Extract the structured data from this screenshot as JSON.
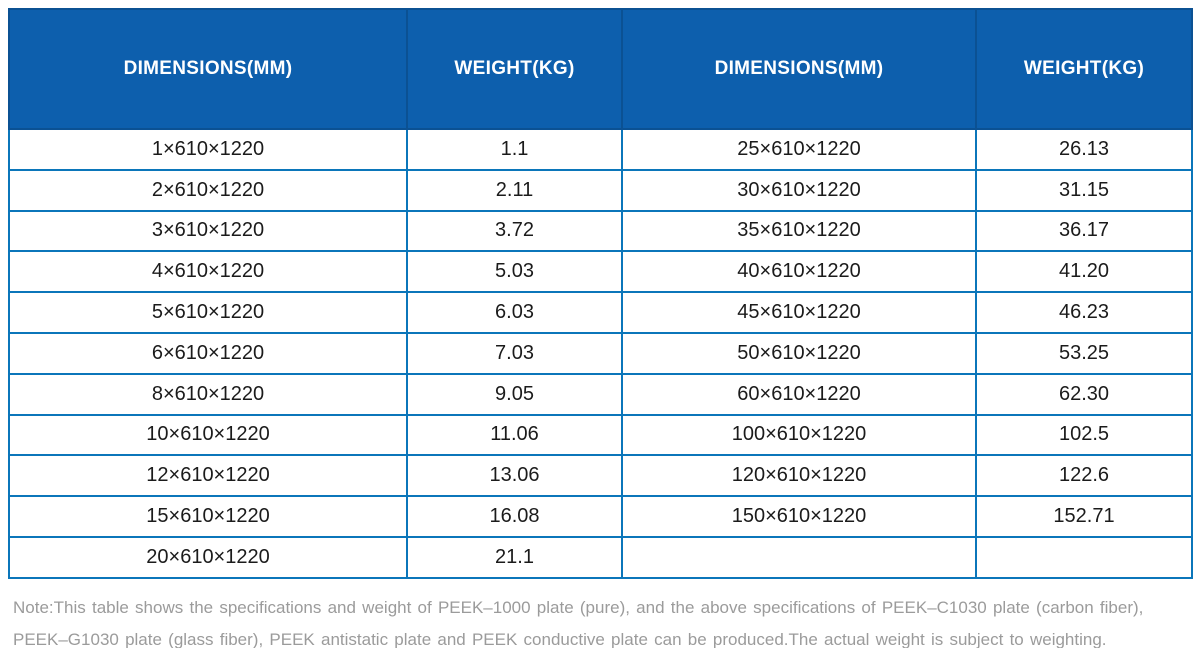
{
  "colors": {
    "header_bg": "#0d5fad",
    "header_border": "#0b5193",
    "header_text": "#ffffff",
    "grid_border": "#0b76ba",
    "cell_text": "#1b1b1b",
    "note_text": "#9b9b9b"
  },
  "table": {
    "columns": [
      {
        "label": "DIMENSIONS(MM)"
      },
      {
        "label": "WEIGHT(KG)"
      },
      {
        "label": "DIMENSIONS(MM)"
      },
      {
        "label": "WEIGHT(KG)"
      }
    ],
    "rows": [
      [
        "1×610×1220",
        "1.1",
        "25×610×1220",
        "26.13"
      ],
      [
        "2×610×1220",
        "2.11",
        "30×610×1220",
        "31.15"
      ],
      [
        "3×610×1220",
        "3.72",
        "35×610×1220",
        "36.17"
      ],
      [
        "4×610×1220",
        "5.03",
        "40×610×1220",
        "41.20"
      ],
      [
        "5×610×1220",
        "6.03",
        "45×610×1220",
        "46.23"
      ],
      [
        "6×610×1220",
        "7.03",
        "50×610×1220",
        "53.25"
      ],
      [
        "8×610×1220",
        "9.05",
        "60×610×1220",
        "62.30"
      ],
      [
        "10×610×1220",
        "11.06",
        "100×610×1220",
        "102.5"
      ],
      [
        "12×610×1220",
        "13.06",
        "120×610×1220",
        "122.6"
      ],
      [
        "15×610×1220",
        "16.08",
        "150×610×1220",
        "152.71"
      ],
      [
        "20×610×1220",
        "21.1",
        "",
        ""
      ]
    ]
  },
  "note": {
    "line1": "Note:This table shows the specifications and weight of PEEK–1000 plate (pure), and the above specifications of PEEK–C1030 plate (carbon fiber),",
    "line2": "PEEK–G1030 plate (glass fiber), PEEK antistatic plate and PEEK conductive plate can be produced.The actual weight is subject to weighting."
  }
}
